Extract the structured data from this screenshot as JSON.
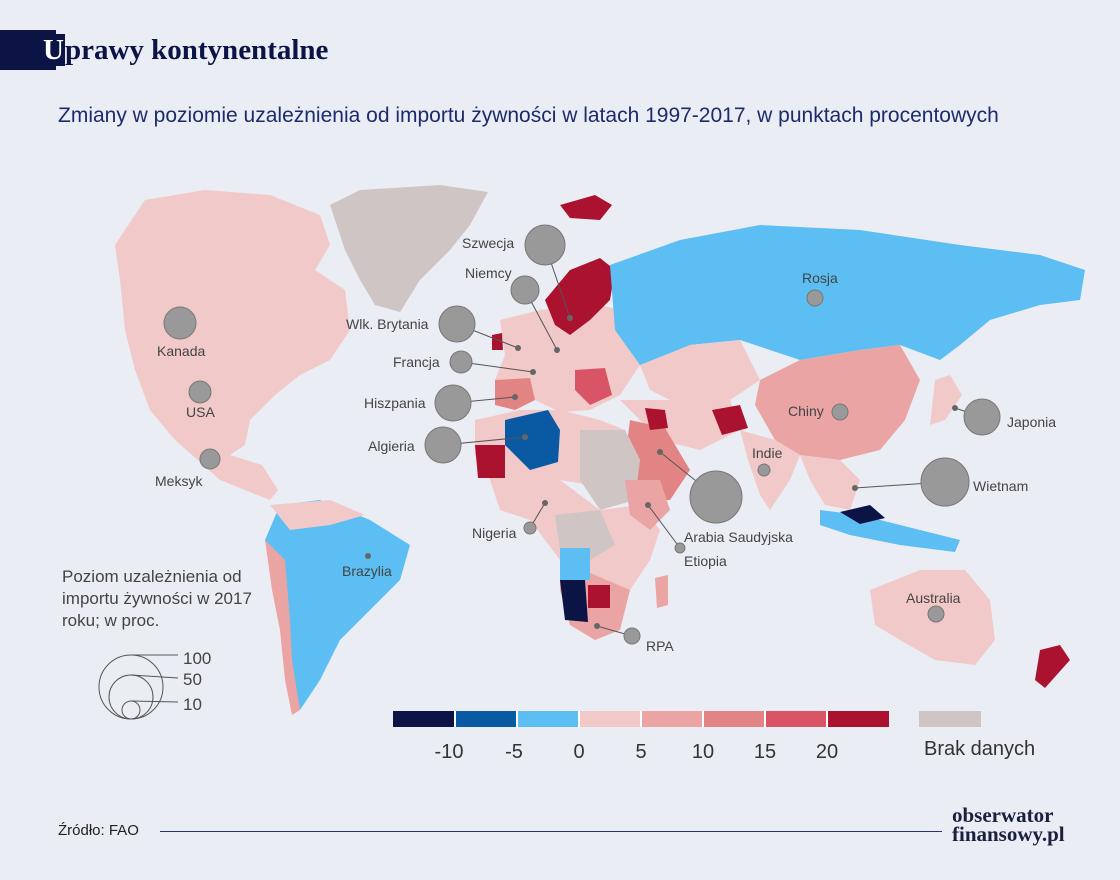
{
  "header": {
    "title_first": "U",
    "title_rest": "prawy kontynentalne",
    "subtitle": "Zmiany w poziomie uzależnienia od importu żywności w latach 1997-2017, w punktach procentowych"
  },
  "colors": {
    "background": "#ebedf4",
    "navy": "#0b1445",
    "scale": [
      "#0b1445",
      "#0a5aa3",
      "#5cbef2",
      "#f2c9c9",
      "#eba4a4",
      "#e38484",
      "#d95565",
      "#aa1230"
    ],
    "no_data": "#cfc5c4",
    "bubble": "#999999"
  },
  "countries": [
    {
      "name": "Szwecja",
      "level_2017": 70
    },
    {
      "name": "Niemcy",
      "level_2017": 40
    },
    {
      "name": "Wlk. Brytania",
      "level_2017": 60
    },
    {
      "name": "Francja",
      "level_2017": 20
    },
    {
      "name": "Hiszpania",
      "level_2017": 55
    },
    {
      "name": "Algieria",
      "level_2017": 60
    },
    {
      "name": "Kanada",
      "level_2017": 40
    },
    {
      "name": "USA",
      "level_2017": 20
    },
    {
      "name": "Meksyk",
      "level_2017": 15
    },
    {
      "name": "Nigeria",
      "level_2017": 8
    },
    {
      "name": "Arabia Saudyjska",
      "level_2017": 100
    },
    {
      "name": "Etiopia",
      "level_2017": 5
    },
    {
      "name": "Indie",
      "level_2017": 8
    },
    {
      "name": "Chiny",
      "level_2017": 12
    },
    {
      "name": "Japonia",
      "level_2017": 60
    },
    {
      "name": "Wietnam",
      "level_2017": 95
    },
    {
      "name": "Rosja",
      "level_2017": 10
    },
    {
      "name": "Brazylia",
      "level_2017": 3
    },
    {
      "name": "Australia",
      "level_2017": 8
    },
    {
      "name": "RPA",
      "level_2017": 15
    }
  ],
  "size_legend": {
    "title": "Poziom uzależnienia od importu żywności w 2017 roku; w proc.",
    "values": [
      "100",
      "50",
      "10"
    ]
  },
  "color_scale": {
    "ticks": [
      "-10",
      "-5",
      "0",
      "5",
      "10",
      "15",
      "20"
    ],
    "no_data_label": "Brak danych"
  },
  "footer": {
    "source": "Źródło: FAO",
    "logo_line1": "obserwator",
    "logo_line2": "finansowy.pl"
  }
}
